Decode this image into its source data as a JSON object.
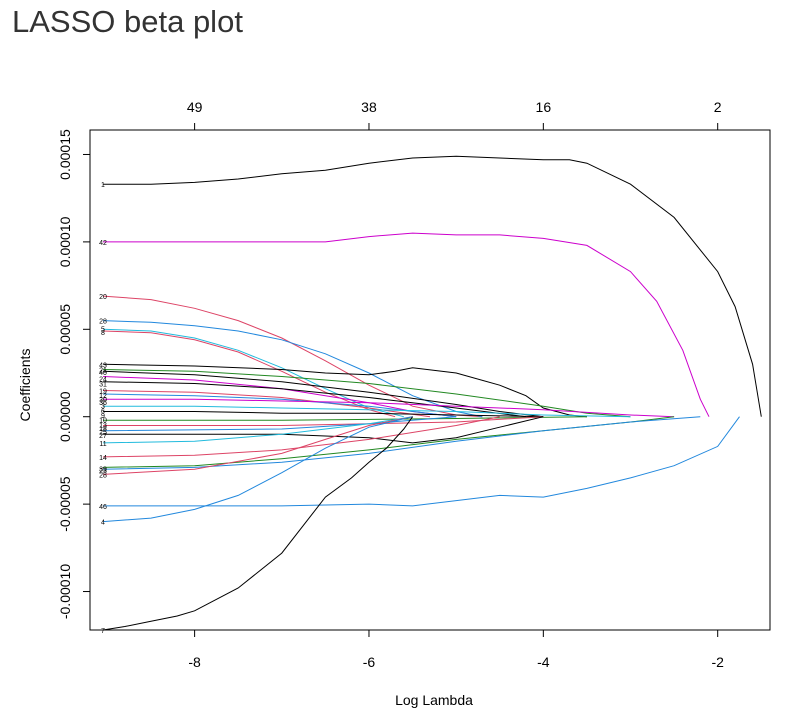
{
  "page": {
    "title": "LASSO beta plot"
  },
  "chart_data": {
    "type": "line",
    "title": "LASSO beta plot",
    "xlabel": "Log Lambda",
    "ylabel": "Coefficients",
    "xlim": [
      -9.2,
      -1.4
    ],
    "ylim": [
      -0.000122,
      0.000164
    ],
    "x_ticks": [
      -8,
      -6,
      -4,
      -2
    ],
    "x_tick_labels": [
      "-8",
      "-6",
      "-4",
      "-2"
    ],
    "y_ticks": [
      -0.0001,
      -5e-05,
      0,
      5e-05,
      0.0001,
      0.00015
    ],
    "y_tick_labels": [
      "-0.00010",
      "-0.00005",
      "0.00000",
      "0.00005",
      "0.00010",
      "0.00015"
    ],
    "top_axis": {
      "x": [
        -8,
        -6,
        -4,
        -2
      ],
      "labels": [
        "49",
        "38",
        "16",
        "2"
      ]
    },
    "grid": false,
    "series": [
      {
        "name": "1",
        "color": "#000000",
        "x": [
          -9.05,
          -8.5,
          -8,
          -7.5,
          -7,
          -6.5,
          -6,
          -5.5,
          -5,
          -4.5,
          -4,
          -3.7,
          -3.5,
          -3,
          -2.5,
          -2,
          -1.8,
          -1.6,
          -1.5
        ],
        "y": [
          0.000133,
          0.000133,
          0.000134,
          0.000136,
          0.000139,
          0.000141,
          0.000145,
          0.000148,
          0.000149,
          0.000148,
          0.000147,
          0.000147,
          0.000145,
          0.000133,
          0.000114,
          8.3e-05,
          6.3e-05,
          3e-05,
          0
        ]
      },
      {
        "name": "42",
        "color": "#cc00cc",
        "x": [
          -9.05,
          -8,
          -7,
          -6.5,
          -6,
          -5.5,
          -5,
          -4.5,
          -4,
          -3.5,
          -3,
          -2.7,
          -2.4,
          -2.2,
          -2.1
        ],
        "y": [
          0.0001,
          0.0001,
          0.0001,
          0.0001,
          0.000103,
          0.000105,
          0.000104,
          0.000104,
          0.000102,
          9.8e-05,
          8.3e-05,
          6.6e-05,
          3.8e-05,
          1e-05,
          0
        ]
      },
      {
        "name": "20",
        "color": "#dd4466",
        "x": [
          -9.05,
          -8.5,
          -8,
          -7.5,
          -7,
          -6.5,
          -6,
          -5.5,
          -5,
          -4.7
        ],
        "y": [
          6.9e-05,
          6.7e-05,
          6.2e-05,
          5.5e-05,
          4.5e-05,
          3.2e-05,
          1.8e-05,
          6e-06,
          1e-06,
          0
        ]
      },
      {
        "name": "28",
        "color": "#2288dd",
        "x": [
          -9.05,
          -8.5,
          -8,
          -7.5,
          -7,
          -6.5,
          -6,
          -5.5,
          -5,
          -4.7
        ],
        "y": [
          5.5e-05,
          5.4e-05,
          5.2e-05,
          4.9e-05,
          4.4e-05,
          3.6e-05,
          2.5e-05,
          1.2e-05,
          3e-06,
          0
        ]
      },
      {
        "name": "5",
        "color": "#22bbdd",
        "x": [
          -9.05,
          -8.5,
          -8,
          -7.5,
          -7,
          -6.5,
          -6,
          -5.6
        ],
        "y": [
          5e-05,
          4.9e-05,
          4.5e-05,
          3.8e-05,
          2.8e-05,
          1.6e-05,
          5e-06,
          0
        ]
      },
      {
        "name": "8",
        "color": "#dd4466",
        "x": [
          -9.05,
          -8.5,
          -8,
          -7.5,
          -7,
          -6.5,
          -6,
          -5.7
        ],
        "y": [
          4.9e-05,
          4.8e-05,
          4.4e-05,
          3.7e-05,
          2.6e-05,
          1.4e-05,
          4e-06,
          0
        ]
      },
      {
        "name": "43",
        "color": "#000000",
        "x": [
          -9.05,
          -8,
          -7,
          -6.5,
          -6,
          -5.7,
          -5.5,
          -5,
          -4.5,
          -4.2,
          -4,
          -3.7,
          -3.5
        ],
        "y": [
          3e-05,
          2.9e-05,
          2.7e-05,
          2.5e-05,
          2.4e-05,
          2.6e-05,
          2.8e-05,
          2.5e-05,
          1.8e-05,
          1.2e-05,
          5e-06,
          1e-06,
          0
        ]
      },
      {
        "name": "21",
        "color": "#228822",
        "x": [
          -9.05,
          -8,
          -7,
          -6,
          -5,
          -4,
          -3.5,
          -3
        ],
        "y": [
          2.7e-05,
          2.6e-05,
          2.3e-05,
          1.9e-05,
          1.3e-05,
          6e-06,
          2e-06,
          0
        ]
      },
      {
        "name": "40",
        "color": "#000000",
        "x": [
          -9.05,
          -8,
          -7,
          -6,
          -5,
          -4.5,
          -4
        ],
        "y": [
          2.6e-05,
          2.4e-05,
          2e-05,
          1.4e-05,
          7e-06,
          3e-06,
          0
        ]
      },
      {
        "name": "24",
        "color": "#cc00cc",
        "x": [
          -9.05,
          -8,
          -7,
          -6,
          -5.5,
          -5
        ],
        "y": [
          2.3e-05,
          2.1e-05,
          1.6e-05,
          8e-06,
          3e-06,
          0
        ]
      },
      {
        "name": "31",
        "color": "#000000",
        "x": [
          -9.05,
          -8,
          -7,
          -6,
          -5,
          -4.2
        ],
        "y": [
          2e-05,
          1.9e-05,
          1.6e-05,
          1.1e-05,
          5e-06,
          0
        ]
      },
      {
        "name": "19",
        "color": "#dd4466",
        "x": [
          -9.05,
          -8,
          -7,
          -6,
          -5.3
        ],
        "y": [
          1.5e-05,
          1.4e-05,
          1.1e-05,
          5e-06,
          0
        ]
      },
      {
        "name": "12",
        "color": "#2288dd",
        "x": [
          -9.05,
          -8,
          -7,
          -6,
          -5
        ],
        "y": [
          1.3e-05,
          1.2e-05,
          1e-05,
          6e-06,
          0
        ]
      },
      {
        "name": "3",
        "color": "#cc00cc",
        "x": [
          -9.05,
          -8,
          -7,
          -6,
          -5,
          -4,
          -3,
          -2.5
        ],
        "y": [
          1e-05,
          1e-05,
          9e-06,
          8e-06,
          6e-06,
          4e-06,
          1e-06,
          0
        ]
      },
      {
        "name": "6",
        "color": "#22bbdd",
        "x": [
          -9.05,
          -8,
          -7,
          -6,
          -5,
          -4,
          -3
        ],
        "y": [
          6e-06,
          6e-06,
          5e-06,
          4e-06,
          3e-06,
          1e-06,
          0
        ]
      },
      {
        "name": "9",
        "color": "#000000",
        "x": [
          -9.05,
          -8,
          -7,
          -6,
          -5,
          -4
        ],
        "y": [
          3e-06,
          3e-06,
          2e-06,
          2e-06,
          1e-06,
          0
        ]
      },
      {
        "name": "10",
        "color": "#228822",
        "x": [
          -9.05,
          -7,
          -5,
          -3.5
        ],
        "y": [
          -2e-06,
          -2e-06,
          -1e-06,
          0
        ]
      },
      {
        "name": "13",
        "color": "#dd4466",
        "x": [
          -9.05,
          -7,
          -5,
          -4
        ],
        "y": [
          -5e-06,
          -5e-06,
          -3e-06,
          0
        ]
      },
      {
        "name": "25",
        "color": "#2288dd",
        "x": [
          -9.05,
          -7,
          -6,
          -5
        ],
        "y": [
          -8e-06,
          -7e-06,
          -4e-06,
          0
        ]
      },
      {
        "name": "27",
        "color": "#000000",
        "x": [
          -9.05,
          -7,
          -6,
          -5.5,
          -5,
          -4.5,
          -4
        ],
        "y": [
          -1e-05,
          -1e-05,
          -1.2e-05,
          -1.5e-05,
          -1.2e-05,
          -6e-06,
          0
        ]
      },
      {
        "name": "11",
        "color": "#22bbdd",
        "x": [
          -9.05,
          -8,
          -7,
          -6,
          -5.5
        ],
        "y": [
          -1.5e-05,
          -1.4e-05,
          -1e-05,
          -4e-06,
          0
        ]
      },
      {
        "name": "14",
        "color": "#dd4466",
        "x": [
          -9.05,
          -8,
          -7,
          -6,
          -5,
          -4.5
        ],
        "y": [
          -2.3e-05,
          -2.2e-05,
          -1.9e-05,
          -1.3e-05,
          -5e-06,
          0
        ]
      },
      {
        "name": "39",
        "color": "#228822",
        "x": [
          -9.05,
          -8,
          -7,
          -6,
          -5,
          -4,
          -3,
          -2.5
        ],
        "y": [
          -2.9e-05,
          -2.8e-05,
          -2.4e-05,
          -1.9e-05,
          -1.3e-05,
          -8e-06,
          -3e-06,
          0
        ]
      },
      {
        "name": "23",
        "color": "#2288dd",
        "x": [
          -9.05,
          -8,
          -7,
          -6,
          -5,
          -4,
          -3,
          -2.2
        ],
        "y": [
          -3e-05,
          -2.9e-05,
          -2.6e-05,
          -2.1e-05,
          -1.4e-05,
          -8e-06,
          -3e-06,
          0
        ]
      },
      {
        "name": "28b",
        "color": "#dd4466",
        "x": [
          -9.05,
          -8,
          -7,
          -6.5,
          -6,
          -5.5
        ],
        "y": [
          -3.3e-05,
          -3e-05,
          -2.1e-05,
          -1.3e-05,
          -5e-06,
          0
        ]
      },
      {
        "name": "46",
        "color": "#2288dd",
        "x": [
          -9.05,
          -8,
          -7,
          -6,
          -5.5,
          -5,
          -4.5,
          -4,
          -3.5,
          -3,
          -2.5,
          -2,
          -1.75
        ],
        "y": [
          -5.1e-05,
          -5.1e-05,
          -5.1e-05,
          -5e-05,
          -5.1e-05,
          -4.8e-05,
          -4.5e-05,
          -4.6e-05,
          -4.1e-05,
          -3.5e-05,
          -2.8e-05,
          -1.7e-05,
          0
        ]
      },
      {
        "name": "4",
        "color": "#2288dd",
        "x": [
          -9.05,
          -8.5,
          -8,
          -7.5,
          -7,
          -6.5,
          -6,
          -5.5
        ],
        "y": [
          -6e-05,
          -5.8e-05,
          -5.3e-05,
          -4.5e-05,
          -3.2e-05,
          -1.8e-05,
          -6e-06,
          0
        ]
      },
      {
        "name": "7",
        "color": "#000000",
        "x": [
          -9.05,
          -8.8,
          -8.5,
          -8.2,
          -8,
          -7.5,
          -7,
          -6.5,
          -6.2,
          -6,
          -5.8,
          -5.6,
          -5.5
        ],
        "y": [
          -0.000122,
          -0.00012,
          -0.000117,
          -0.000114,
          -0.000111,
          -9.8e-05,
          -7.8e-05,
          -4.6e-05,
          -3.5e-05,
          -2.6e-05,
          -1.8e-05,
          -7e-06,
          0
        ]
      }
    ],
    "line_labels": [
      {
        "text": "1",
        "y": 0.000133
      },
      {
        "text": "42",
        "y": 0.0001
      },
      {
        "text": "20",
        "y": 6.9e-05
      },
      {
        "text": "28",
        "y": 5.5e-05
      },
      {
        "text": "5",
        "y": 5.05e-05
      },
      {
        "text": "8",
        "y": 4.85e-05
      },
      {
        "text": "43",
        "y": 3e-05
      },
      {
        "text": "21",
        "y": 2.7e-05
      },
      {
        "text": "40",
        "y": 2.55e-05
      },
      {
        "text": "24",
        "y": 2.2e-05
      },
      {
        "text": "31",
        "y": 1.9e-05
      },
      {
        "text": "19",
        "y": 1.5e-05
      },
      {
        "text": "12",
        "y": 1.25e-05
      },
      {
        "text": "30",
        "y": 1e-05
      },
      {
        "text": "36",
        "y": 8.5e-06
      },
      {
        "text": "3",
        "y": 6.5e-06
      },
      {
        "text": "6",
        "y": 3.5e-06
      },
      {
        "text": "9",
        "y": 1e-06
      },
      {
        "text": "10",
        "y": -1.5e-06
      },
      {
        "text": "13",
        "y": -4.5e-06
      },
      {
        "text": "18",
        "y": -6.5e-06
      },
      {
        "text": "25",
        "y": -8.5e-06
      },
      {
        "text": "27",
        "y": -1.05e-05
      },
      {
        "text": "11",
        "y": -1.5e-05
      },
      {
        "text": "14",
        "y": -2.3e-05
      },
      {
        "text": "39",
        "y": -2.95e-05
      },
      {
        "text": "23",
        "y": -3.05e-05
      },
      {
        "text": "28",
        "y": -3.3e-05
      },
      {
        "text": "46",
        "y": -5.1e-05
      },
      {
        "text": "4",
        "y": -6e-05
      },
      {
        "text": "7",
        "y": -0.000122
      }
    ]
  }
}
